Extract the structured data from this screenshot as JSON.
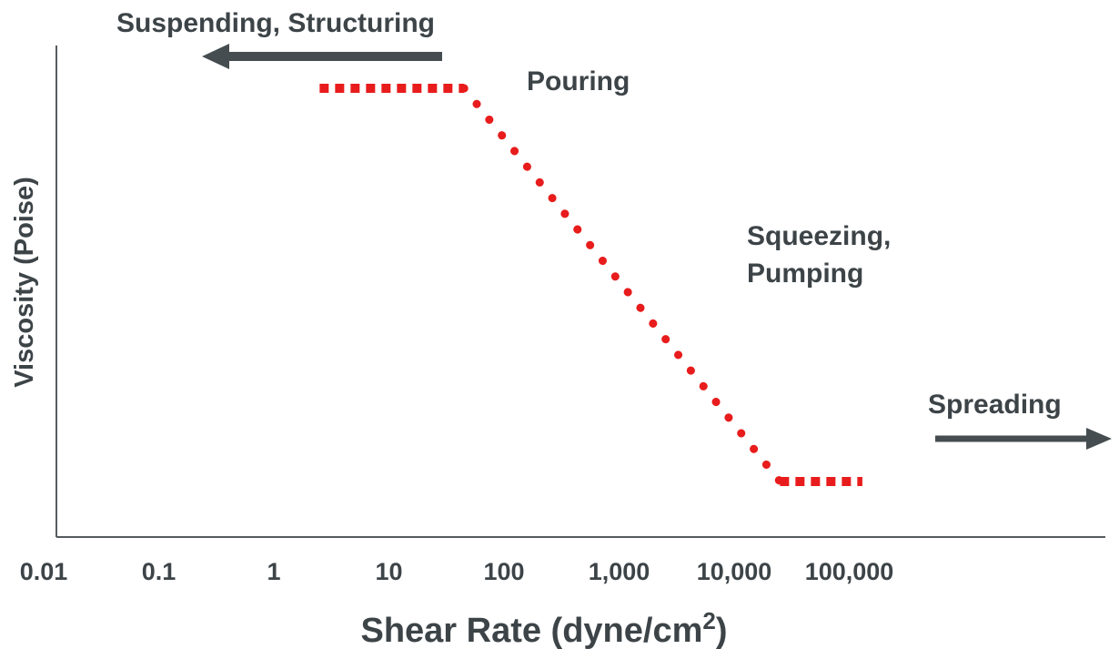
{
  "chart_data": {
    "type": "line",
    "title": "",
    "xlabel": "Shear Rate (dyne/cm",
    "xlabel_superscript": "2",
    "xlabel_suffix": ")",
    "ylabel": "Viscosity (Poise)",
    "x_scale": "log",
    "xlim": [
      0.01,
      100000
    ],
    "y_ticks_shown": false,
    "x_ticks": [
      "0.01",
      "0.1",
      "1",
      "10",
      "100",
      "1,000",
      "10,000",
      "100,000"
    ],
    "x_tick_values": [
      0.01,
      0.1,
      1,
      10,
      100,
      1000,
      10000,
      100000
    ],
    "series": [
      {
        "style": "dotted",
        "color": "#e81c1c",
        "x": [
          2.5,
          45,
          25000,
          130000
        ],
        "y": [
          1,
          1,
          0,
          0
        ]
      }
    ],
    "y_note": "relative viscosity (qualitative, axis unlabeled: 1 = high plateau, 0 = low plateau)",
    "annotations": {
      "suspending": "Suspending, Structuring",
      "pouring": "Pouring",
      "squeezing_line1": "Squeezing,",
      "squeezing_line2": "Pumping",
      "spreading": "Spreading"
    },
    "colors": {
      "axis": "#555b5e",
      "text": "#3d4448",
      "arrow": "#454d51",
      "curve": "#e81c1c"
    }
  }
}
